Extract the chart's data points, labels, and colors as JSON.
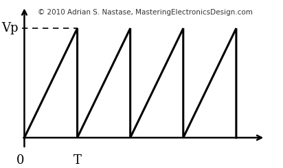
{
  "background_color": "#ffffff",
  "line_color": "#000000",
  "line_width": 2.2,
  "num_cycles": 4,
  "vp_label": "Vp",
  "origin_label": "0",
  "period_label": "T",
  "copyright_text": "© 2010 Adrian S. Nastase, MasteringElectronicsDesign.com",
  "copyright_fontsize": 7.5,
  "label_fontsize": 13,
  "dashed_color": "#555555",
  "xlim": [
    -0.15,
    4.6
  ],
  "ylim": [
    -0.18,
    1.25
  ]
}
